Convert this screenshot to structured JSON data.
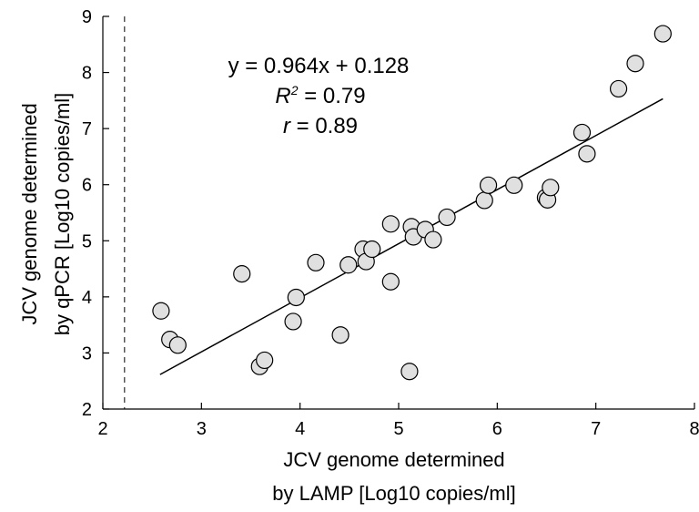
{
  "chart_data": {
    "type": "scatter",
    "xlabel_line1": "JCV genome determined",
    "xlabel_line2": "by LAMP [Log10 copies/ml]",
    "ylabel_line1": "JCV genome determined",
    "ylabel_line2": "by qPCR [Log10 copies/ml]",
    "xlim": [
      2,
      8
    ],
    "ylim": [
      2,
      9
    ],
    "x_ticks": [
      "2",
      "3",
      "4",
      "5",
      "6",
      "7",
      "8"
    ],
    "y_ticks": [
      "2",
      "3",
      "4",
      "5",
      "6",
      "7",
      "8",
      "9"
    ],
    "annotations": {
      "equation": "y = 0.964x + 0.128",
      "r2_symbol": "R",
      "r2_exp": "2",
      "r2_value": " = 0.79",
      "r_symbol": "r",
      "r_value": " = 0.89"
    },
    "cutoff_line_x": 2.22,
    "fit": {
      "slope": 0.964,
      "intercept": 0.128,
      "x_range": [
        2.58,
        7.68
      ]
    },
    "points": [
      {
        "x": 2.59,
        "y": 3.75
      },
      {
        "x": 2.68,
        "y": 3.24
      },
      {
        "x": 2.76,
        "y": 3.14
      },
      {
        "x": 3.41,
        "y": 4.41
      },
      {
        "x": 3.59,
        "y": 2.76
      },
      {
        "x": 3.64,
        "y": 2.87
      },
      {
        "x": 3.93,
        "y": 3.56
      },
      {
        "x": 3.96,
        "y": 3.99
      },
      {
        "x": 4.16,
        "y": 4.61
      },
      {
        "x": 4.41,
        "y": 3.32
      },
      {
        "x": 4.49,
        "y": 4.57
      },
      {
        "x": 4.64,
        "y": 4.85
      },
      {
        "x": 4.67,
        "y": 4.63
      },
      {
        "x": 4.73,
        "y": 4.85
      },
      {
        "x": 4.92,
        "y": 5.3
      },
      {
        "x": 4.92,
        "y": 4.27
      },
      {
        "x": 5.11,
        "y": 2.67
      },
      {
        "x": 5.13,
        "y": 5.25
      },
      {
        "x": 5.15,
        "y": 5.07
      },
      {
        "x": 5.27,
        "y": 5.2
      },
      {
        "x": 5.35,
        "y": 5.02
      },
      {
        "x": 5.49,
        "y": 5.42
      },
      {
        "x": 5.87,
        "y": 5.72
      },
      {
        "x": 5.91,
        "y": 5.99
      },
      {
        "x": 6.17,
        "y": 5.99
      },
      {
        "x": 6.49,
        "y": 5.77
      },
      {
        "x": 6.51,
        "y": 5.73
      },
      {
        "x": 6.54,
        "y": 5.95
      },
      {
        "x": 6.86,
        "y": 6.93
      },
      {
        "x": 6.91,
        "y": 6.55
      },
      {
        "x": 7.23,
        "y": 7.71
      },
      {
        "x": 7.4,
        "y": 8.16
      },
      {
        "x": 7.68,
        "y": 8.69
      }
    ],
    "point_fill": "#e0e0e0",
    "point_stroke": "#000000",
    "grid": false
  }
}
